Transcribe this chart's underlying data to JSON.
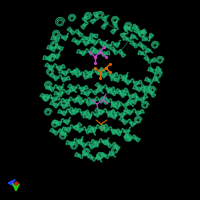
{
  "background_color": "#000000",
  "figure_size": [
    2.0,
    2.0
  ],
  "dpi": 100,
  "protein_color": "#1d9966",
  "protein_highlight": "#22bb77",
  "protein_dark": "#0d6644",
  "protein_shadow": "#0a4433",
  "ligand_pink": "#cc44cc",
  "ligand_orange": "#dd6600",
  "ligand_red": "#cc2200",
  "axis_x_color": "#2244ff",
  "axis_y_color": "#22cc00",
  "axis_origin_color": "#cc2200"
}
